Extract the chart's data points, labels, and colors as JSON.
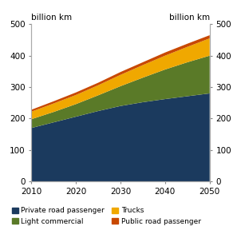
{
  "years": [
    2010,
    2015,
    2020,
    2025,
    2030,
    2035,
    2040,
    2045,
    2050
  ],
  "private_road_passenger": [
    170,
    188,
    206,
    224,
    240,
    252,
    262,
    271,
    280
  ],
  "light_commercial": [
    28,
    33,
    40,
    50,
    63,
    78,
    94,
    108,
    120
  ],
  "trucks": [
    24,
    27,
    29,
    32,
    36,
    40,
    44,
    49,
    55
  ],
  "public_road_passenger": [
    6,
    7,
    8,
    8,
    9,
    9,
    10,
    10,
    10
  ],
  "colors": {
    "private_road_passenger": "#1b3a5e",
    "light_commercial": "#5a7a28",
    "trucks": "#f0a800",
    "public_road_passenger": "#c84800"
  },
  "ylim": [
    0,
    500
  ],
  "yticks": [
    0,
    100,
    200,
    300,
    400,
    500
  ],
  "ylabel_left": "billion km",
  "ylabel_right": "billion km",
  "legend_labels": [
    "Private road passenger",
    "Light commercial",
    "Trucks",
    "Public road passenger"
  ],
  "xticks": [
    2010,
    2020,
    2030,
    2040,
    2050
  ],
  "tick_color": "#888888",
  "spine_color": "#aaaaaa"
}
